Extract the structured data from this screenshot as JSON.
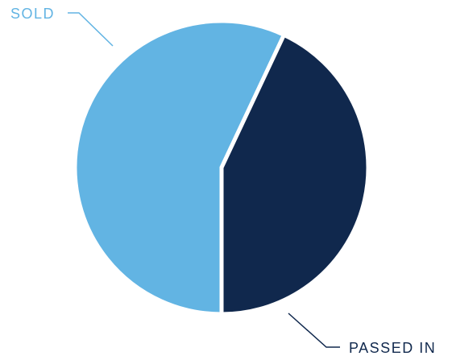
{
  "chart_data": {
    "type": "pie",
    "slices": [
      {
        "label": "SOLD",
        "value": 57,
        "color": "#62b4e3"
      },
      {
        "label": "PASSED IN",
        "value": 43,
        "color": "#10284d"
      }
    ],
    "legend": "callout-labels"
  },
  "colors": {
    "sold": "#62b4e3",
    "passed_in": "#10284d",
    "background": "#ffffff"
  }
}
